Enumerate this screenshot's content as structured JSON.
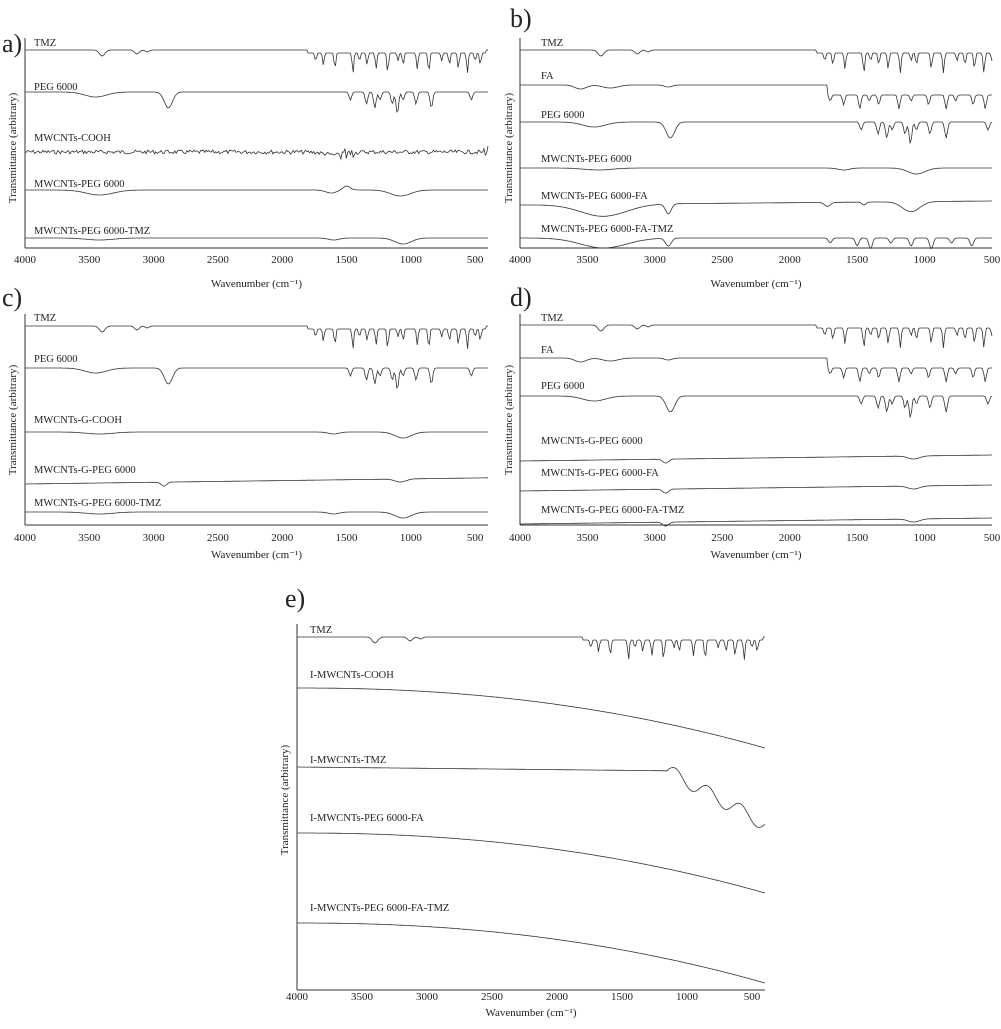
{
  "figure": {
    "x_axis_title": "Wavenumber (cm⁻¹)",
    "y_axis_title": "Transmittance (arbitrary)"
  },
  "chart_data": [
    {
      "panel": "a)",
      "type": "line",
      "xlim": [
        4000,
        400
      ],
      "xticks": [
        4000,
        3500,
        3000,
        2500,
        2000,
        1500,
        1000,
        500
      ],
      "xlabel": "Wavenumber (cm⁻¹)",
      "ylabel": "Transmittance (arbitrary)",
      "series": [
        {
          "name": "TMZ",
          "profile": "tmz"
        },
        {
          "name": "PEG 6000",
          "profile": "peg"
        },
        {
          "name": "MWCNTs-COOH",
          "profile": "noisy"
        },
        {
          "name": "MWCNTs-PEG 6000",
          "profile": "cnt_peg"
        },
        {
          "name": "MWCNTs-PEG 6000-TMZ",
          "profile": "cnt_flat"
        }
      ]
    },
    {
      "panel": "b)",
      "type": "line",
      "xlim": [
        4000,
        500
      ],
      "xticks": [
        4000,
        3500,
        3000,
        2500,
        2000,
        1500,
        1000,
        500
      ],
      "xlabel": "Wavenumber (cm⁻¹)",
      "ylabel": "Transmittance (arbitrary)",
      "series": [
        {
          "name": "TMZ",
          "profile": "tmz"
        },
        {
          "name": "FA",
          "profile": "fa"
        },
        {
          "name": "PEG 6000",
          "profile": "peg"
        },
        {
          "name": "MWCNTs-PEG 6000",
          "profile": "cnt_flat"
        },
        {
          "name": "MWCNTs-PEG 6000-FA",
          "profile": "cnt_fa"
        },
        {
          "name": "MWCNTs-PEG 6000-FA-TMZ",
          "profile": "cnt_fa_tmz"
        }
      ]
    },
    {
      "panel": "c)",
      "type": "line",
      "xlim": [
        4000,
        400
      ],
      "xticks": [
        4000,
        3500,
        3000,
        2500,
        2000,
        1500,
        1000,
        500
      ],
      "xlabel": "Wavenumber (cm⁻¹)",
      "ylabel": "Transmittance (arbitrary)",
      "series": [
        {
          "name": "TMZ",
          "profile": "tmz"
        },
        {
          "name": "PEG 6000",
          "profile": "peg"
        },
        {
          "name": "MWCNTs-G-COOH",
          "profile": "cnt_flat"
        },
        {
          "name": "MWCNTs-G-PEG 6000",
          "profile": "rising"
        },
        {
          "name": "MWCNTs-G-PEG 6000-TMZ",
          "profile": "cnt_flat"
        }
      ]
    },
    {
      "panel": "d)",
      "type": "line",
      "xlim": [
        4000,
        500
      ],
      "xticks": [
        4000,
        3500,
        3000,
        2500,
        2000,
        1500,
        1000,
        500
      ],
      "xlabel": "Wavenumber (cm⁻¹)",
      "ylabel": "Transmittance (arbitrary)",
      "series": [
        {
          "name": "TMZ",
          "profile": "tmz"
        },
        {
          "name": "FA",
          "profile": "fa"
        },
        {
          "name": "PEG 6000",
          "profile": "peg"
        },
        {
          "name": "MWCNTs-G-PEG 6000",
          "profile": "rising"
        },
        {
          "name": "MWCNTs-G-PEG 6000-FA",
          "profile": "rising"
        },
        {
          "name": "MWCNTs-G-PEG 6000-FA-TMZ",
          "profile": "rising"
        }
      ]
    },
    {
      "panel": "e)",
      "type": "line",
      "xlim": [
        4000,
        400
      ],
      "xticks": [
        4000,
        3500,
        3000,
        2500,
        2000,
        1500,
        1000,
        500
      ],
      "xlabel": "Wavenumber (cm⁻¹)",
      "ylabel": "Transmittance (arbitrary)",
      "series": [
        {
          "name": "TMZ",
          "profile": "tmz"
        },
        {
          "name": "I-MWCNTs-COOH",
          "profile": "falling"
        },
        {
          "name": "I-MWCNTs-TMZ",
          "profile": "imw_tmz"
        },
        {
          "name": "I-MWCNTs-PEG 6000-FA",
          "profile": "falling"
        },
        {
          "name": "I-MWCNTs-PEG 6000-FA-TMZ",
          "profile": "falling"
        }
      ]
    }
  ]
}
